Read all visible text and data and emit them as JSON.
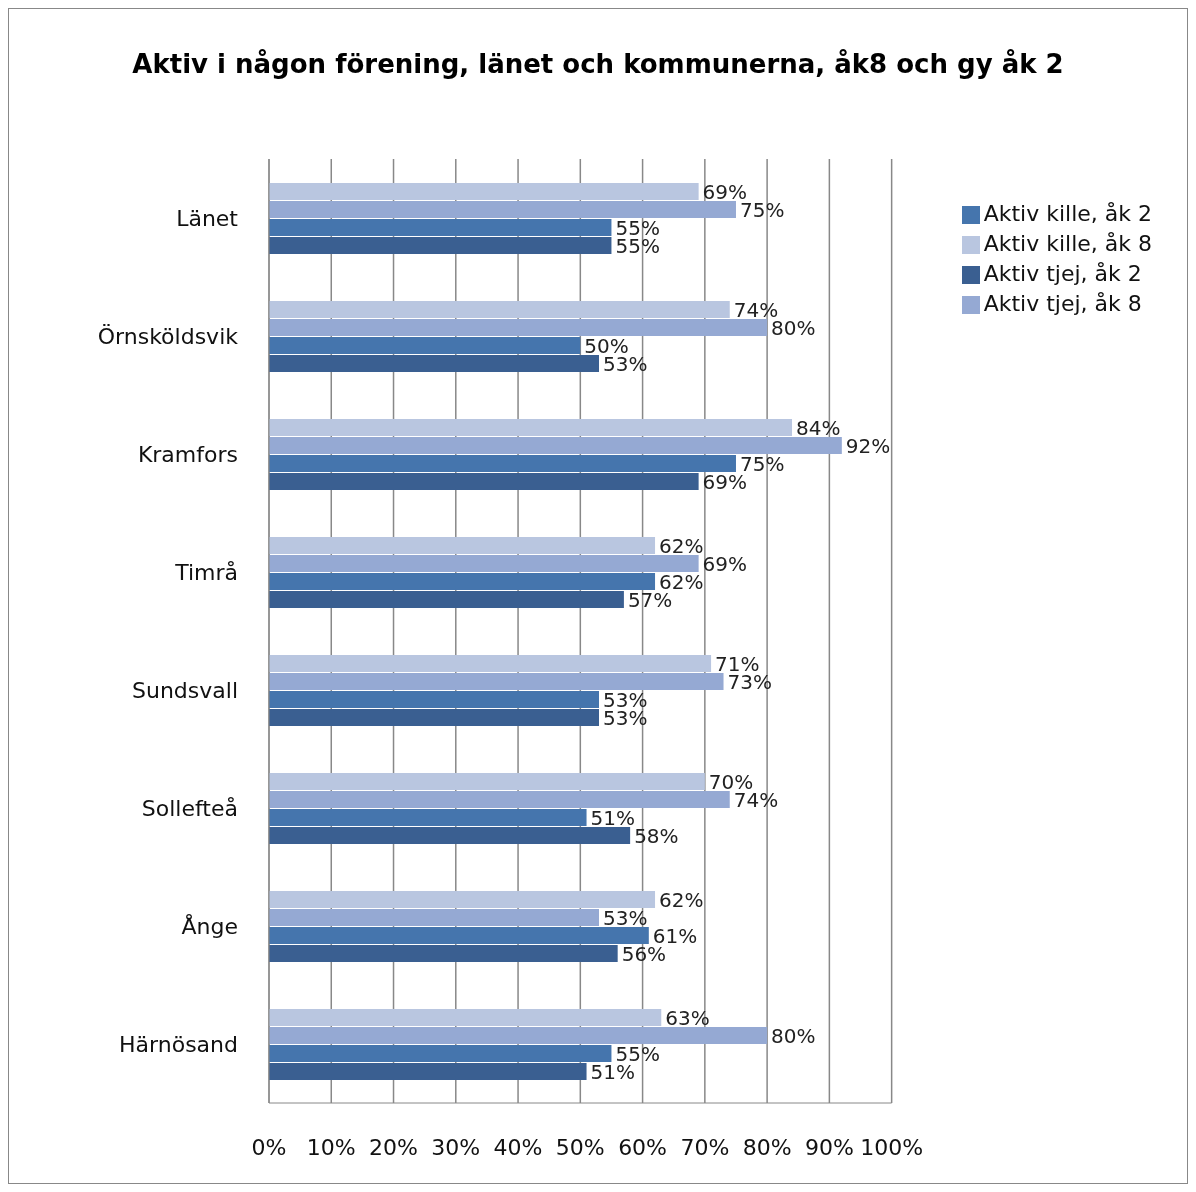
{
  "chart_data": {
    "type": "bar",
    "orientation": "horizontal",
    "title": "Aktiv i någon förening, länet och kommunerna, åk8 och gy åk 2",
    "categories": [
      "Länet",
      "Örnsköldsvik",
      "Kramfors",
      "Timrå",
      "Sundsvall",
      "Sollefteå",
      "Ånge",
      "Härnösand"
    ],
    "series": [
      {
        "name": "Aktiv kille, åk 8",
        "color": "#b9c6e0",
        "values": [
          69,
          74,
          84,
          62,
          71,
          70,
          62,
          63
        ],
        "value_labels": [
          "69%",
          "74%",
          "84%",
          "62%",
          "71%",
          "70%",
          "62%",
          "63%"
        ]
      },
      {
        "name": "Aktiv tjej, åk 8",
        "color": "#95a9d3",
        "values": [
          75,
          80,
          92,
          69,
          73,
          74,
          53,
          80
        ],
        "value_labels": [
          "75%",
          "80%",
          "92%",
          "69%",
          "73%",
          "74%",
          "53%",
          "80%"
        ]
      },
      {
        "name": "Aktiv kille, åk 2",
        "color": "#4575ad",
        "values": [
          55,
          50,
          75,
          62,
          53,
          51,
          61,
          55
        ],
        "value_labels": [
          "55%",
          "50%",
          "75%",
          "62%",
          "53%",
          "51%",
          "61%",
          "55%"
        ]
      },
      {
        "name": "Aktiv tjej, åk 2",
        "color": "#3a5f91",
        "values": [
          55,
          53,
          69,
          57,
          53,
          58,
          56,
          51
        ],
        "value_labels": [
          "55%",
          "53%",
          "69%",
          "57%",
          "53%",
          "58%",
          "56%",
          "51%"
        ]
      }
    ],
    "xlim": [
      0,
      100
    ],
    "xticks": [
      {
        "value": 0,
        "label": "0%"
      },
      {
        "value": 10,
        "label": "10%"
      },
      {
        "value": 20,
        "label": "20%"
      },
      {
        "value": 30,
        "label": "30%"
      },
      {
        "value": 40,
        "label": "40%"
      },
      {
        "value": 50,
        "label": "50%"
      },
      {
        "value": 60,
        "label": "60%"
      },
      {
        "value": 70,
        "label": "70%"
      },
      {
        "value": 80,
        "label": "80%"
      },
      {
        "value": 90,
        "label": "90%"
      },
      {
        "value": 100,
        "label": "100%"
      }
    ],
    "grid": "x",
    "legend": "top right"
  }
}
